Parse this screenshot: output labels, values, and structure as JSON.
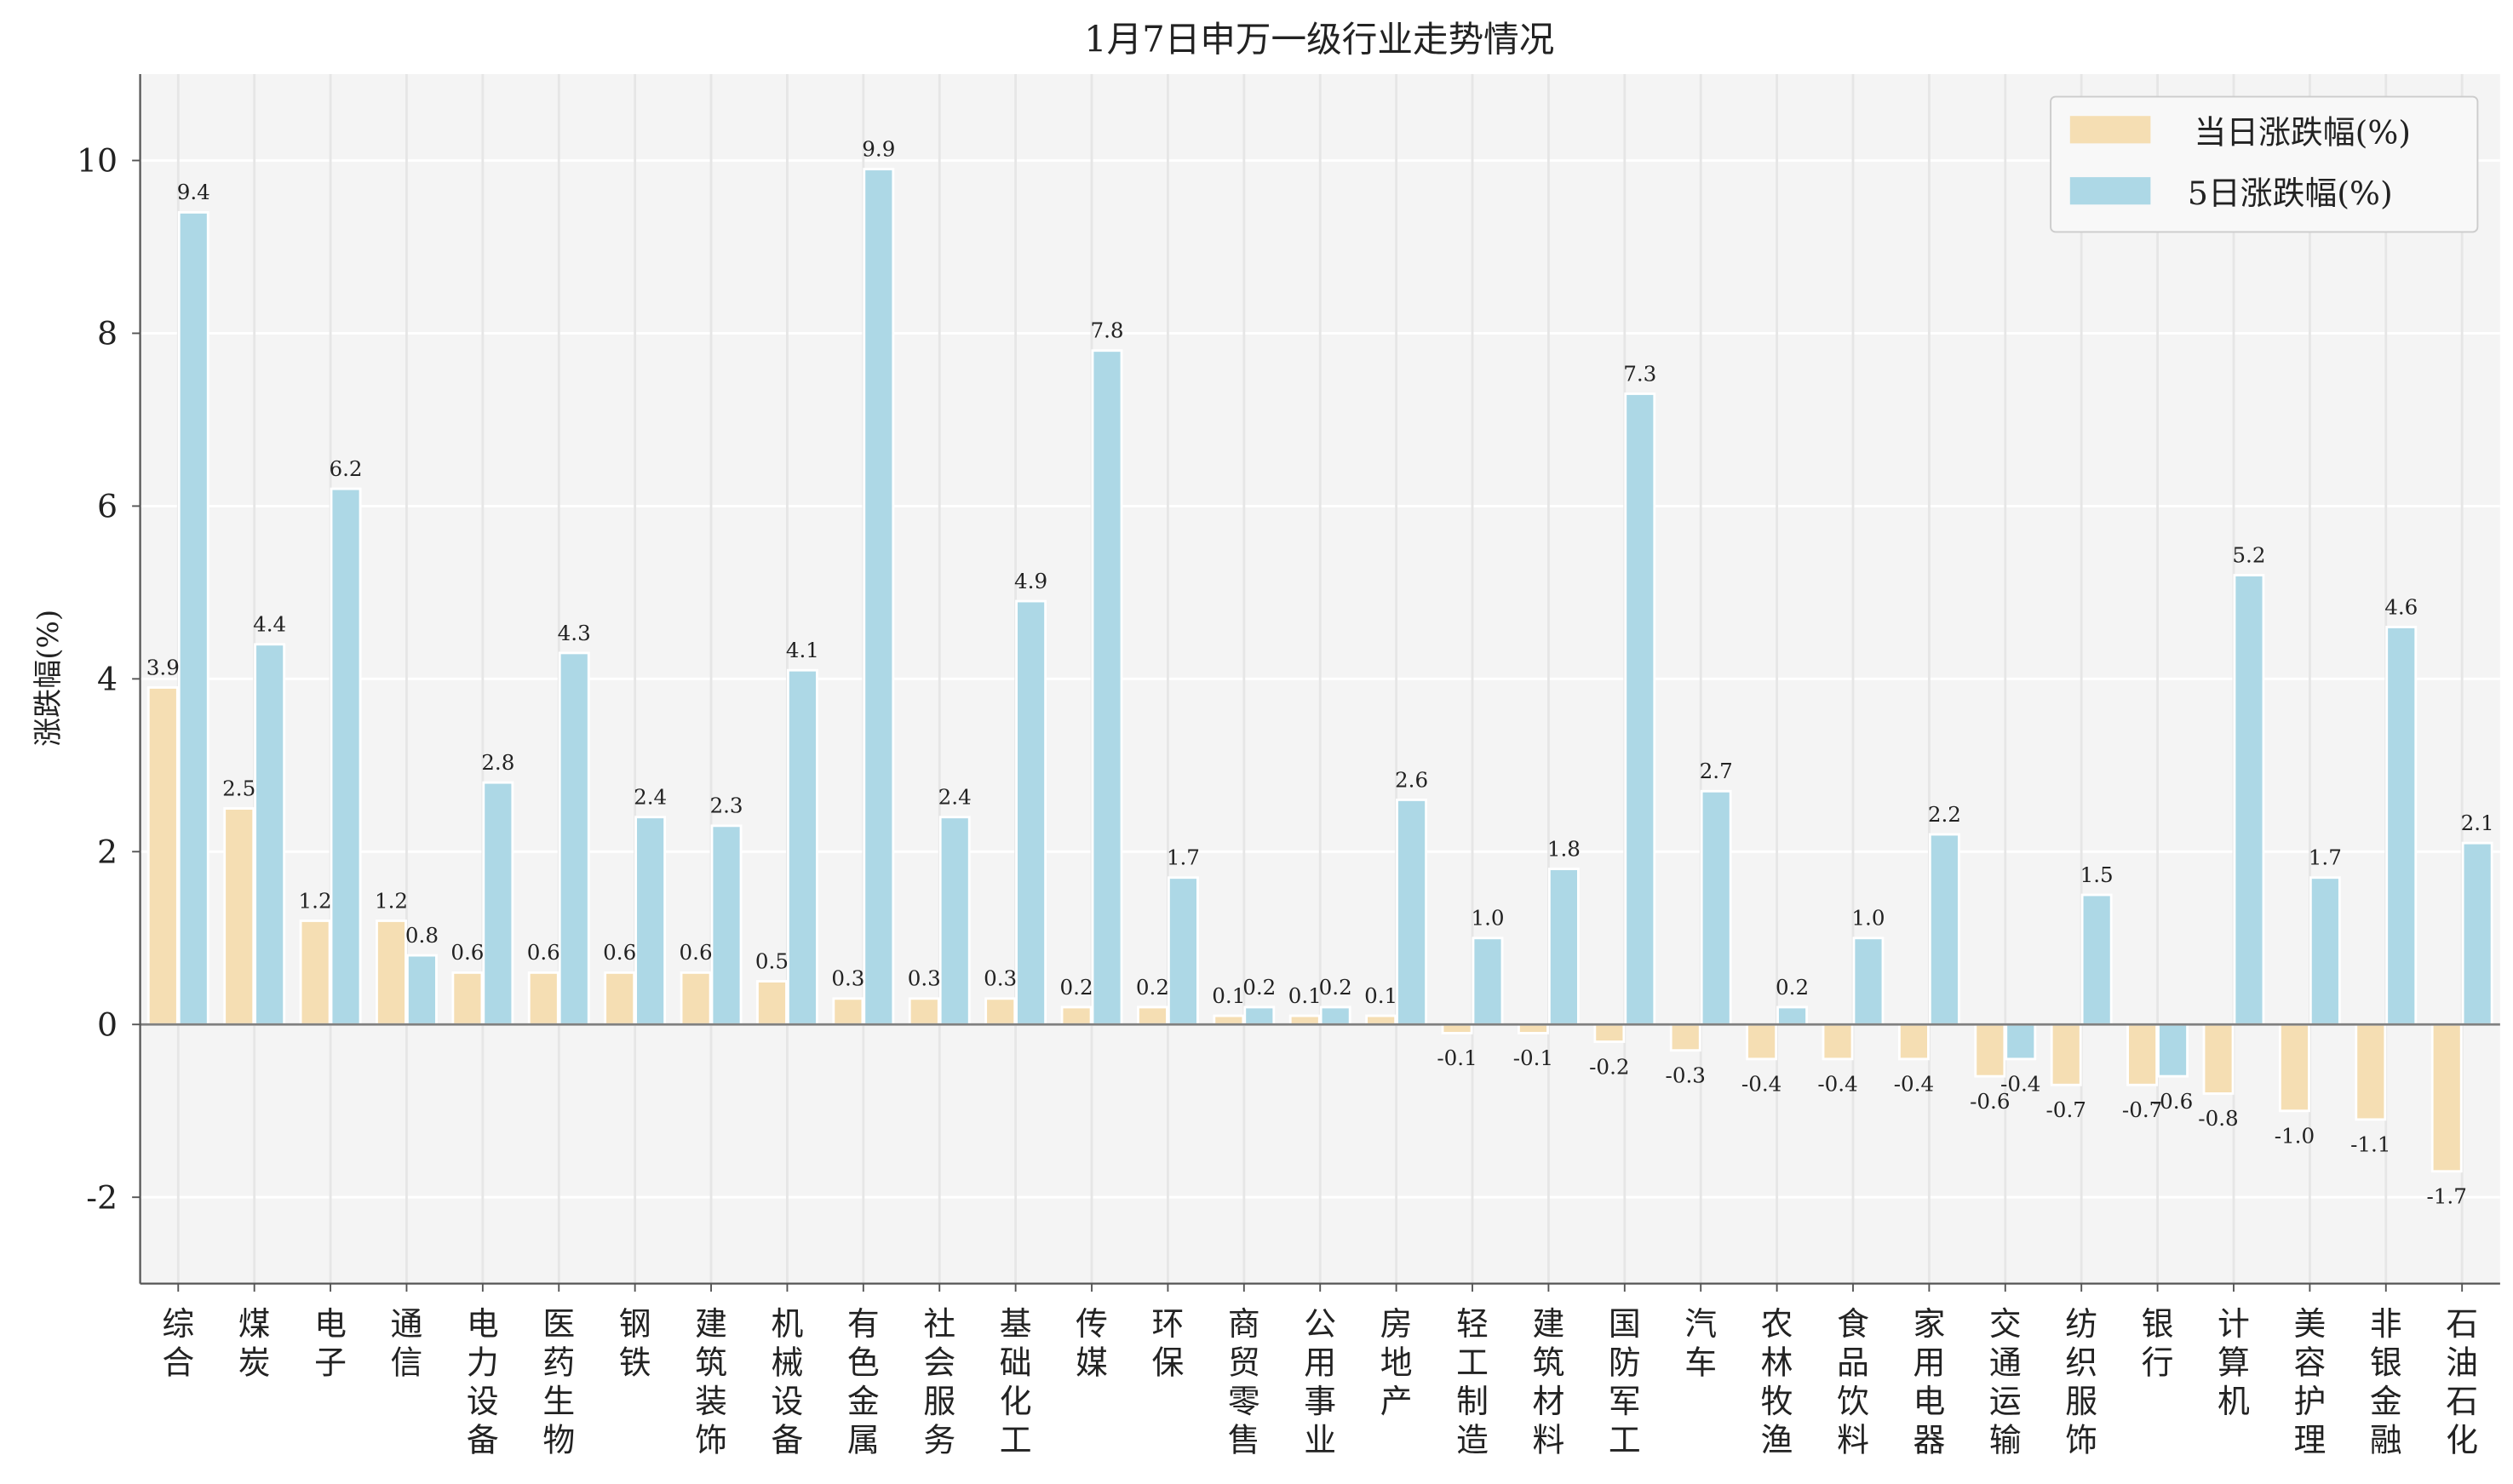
{
  "chart_data": {
    "type": "bar",
    "title": "1月7日申万一级行业走势情况",
    "xlabel": "",
    "ylabel": "涨跌幅(%)",
    "ylim": [
      -3,
      11
    ],
    "yticks": [
      -2,
      0,
      2,
      4,
      6,
      8,
      10
    ],
    "grid": true,
    "legend_position": "top-right",
    "categories": [
      "综合",
      "煤炭",
      "电子",
      "通信",
      "电力设备",
      "医药生物",
      "钢铁",
      "建筑装饰",
      "机械设备",
      "有色金属",
      "社会服务",
      "基础化工",
      "传媒",
      "环保",
      "商贸零售",
      "公用事业",
      "房地产",
      "轻工制造",
      "建筑材料",
      "国防军工",
      "汽车",
      "农林牧渔",
      "食品饮料",
      "家用电器",
      "交通运输",
      "纺织服饰",
      "银行",
      "计算机",
      "美容护理",
      "非银金融",
      "石油石化"
    ],
    "series": [
      {
        "name": "当日涨跌幅(%)",
        "color": "#f5deb3",
        "values": [
          3.9,
          2.5,
          1.2,
          1.2,
          0.6,
          0.6,
          0.6,
          0.6,
          0.5,
          0.3,
          0.3,
          0.3,
          0.2,
          0.2,
          0.1,
          0.1,
          0.1,
          -0.1,
          -0.1,
          -0.2,
          -0.3,
          -0.4,
          -0.4,
          -0.4,
          -0.6,
          -0.7,
          -0.7,
          -0.8,
          -1.0,
          -1.1,
          -1.7
        ]
      },
      {
        "name": "5日涨跌幅(%)",
        "color": "#add8e6",
        "values": [
          9.4,
          4.4,
          6.2,
          0.8,
          2.8,
          4.3,
          2.4,
          2.3,
          4.1,
          9.9,
          2.4,
          4.9,
          7.8,
          1.7,
          0.2,
          0.2,
          2.6,
          1.0,
          1.8,
          7.3,
          2.7,
          0.2,
          1.0,
          2.2,
          -0.4,
          1.5,
          -0.6,
          5.2,
          1.7,
          4.6,
          2.1
        ]
      }
    ]
  }
}
